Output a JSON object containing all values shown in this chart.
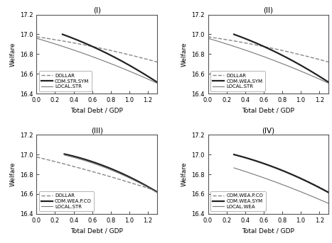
{
  "panels": [
    {
      "title": "(I)",
      "legend": [
        "DOLLAR",
        "COM.STR.SYM",
        "LOCAL.STR"
      ],
      "curves": [
        {
          "x0": 0.0,
          "x1": 1.3,
          "y0": 16.975,
          "y1": 16.72,
          "concavity": 0.08,
          "style": "--",
          "lw": 1.0,
          "color": "#888888"
        },
        {
          "x0": 0.28,
          "x1": 1.3,
          "y0": 17.0,
          "y1": 16.515,
          "concavity": 0.14,
          "style": "-",
          "lw": 1.6,
          "color": "#222222"
        },
        {
          "x0": 0.0,
          "x1": 1.3,
          "y0": 16.96,
          "y1": 16.505,
          "concavity": 0.1,
          "style": "-",
          "lw": 0.8,
          "color": "#777777"
        }
      ]
    },
    {
      "title": "(II)",
      "legend": [
        "DOLLAR",
        "COM.WEA.SYM",
        "LOCAL.STR"
      ],
      "curves": [
        {
          "x0": 0.0,
          "x1": 1.3,
          "y0": 16.975,
          "y1": 16.72,
          "concavity": 0.08,
          "style": "--",
          "lw": 1.0,
          "color": "#888888"
        },
        {
          "x0": 0.28,
          "x1": 1.3,
          "y0": 17.0,
          "y1": 16.515,
          "concavity": 0.14,
          "style": "-",
          "lw": 1.6,
          "color": "#222222"
        },
        {
          "x0": 0.0,
          "x1": 1.3,
          "y0": 16.96,
          "y1": 16.505,
          "concavity": 0.1,
          "style": "-",
          "lw": 0.8,
          "color": "#777777"
        }
      ]
    },
    {
      "title": "(III)",
      "legend": [
        "DOLLAR",
        "COM.WEA.P.CO",
        "LOCAL.STR"
      ],
      "curves": [
        {
          "x0": 0.0,
          "x1": 1.3,
          "y0": 16.975,
          "y1": 16.63,
          "concavity": 0.05,
          "style": "--",
          "lw": 1.0,
          "color": "#888888"
        },
        {
          "x0": 0.3,
          "x1": 1.3,
          "y0": 17.005,
          "y1": 16.62,
          "concavity": 0.18,
          "style": "-",
          "lw": 1.6,
          "color": "#222222"
        },
        {
          "x0": 0.3,
          "x1": 1.3,
          "y0": 16.995,
          "y1": 16.615,
          "concavity": 0.16,
          "style": "-",
          "lw": 0.8,
          "color": "#777777"
        }
      ]
    },
    {
      "title": "(IV)",
      "legend": [
        "COM.WEA.P.CO",
        "COM.WEA.SYM",
        "LOCAL.WEA"
      ],
      "curves": [
        {
          "x0": 0.28,
          "x1": 1.3,
          "y0": 17.0,
          "y1": 16.62,
          "concavity": 0.14,
          "style": "--",
          "lw": 1.0,
          "color": "#888888"
        },
        {
          "x0": 0.28,
          "x1": 1.3,
          "y0": 17.0,
          "y1": 16.615,
          "concavity": 0.14,
          "style": "-",
          "lw": 1.6,
          "color": "#222222"
        },
        {
          "x0": 0.28,
          "x1": 1.3,
          "y0": 16.865,
          "y1": 16.505,
          "concavity": 0.06,
          "style": "-",
          "lw": 0.8,
          "color": "#777777"
        }
      ]
    }
  ],
  "xlim": [
    0,
    1.3
  ],
  "ylim": [
    16.4,
    17.2
  ],
  "yticks": [
    16.4,
    16.6,
    16.8,
    17.0,
    17.2
  ],
  "xticks": [
    0,
    0.2,
    0.4,
    0.6,
    0.8,
    1.0,
    1.2
  ],
  "xlabel": "Total Debt / GDP",
  "ylabel": "Welfare"
}
